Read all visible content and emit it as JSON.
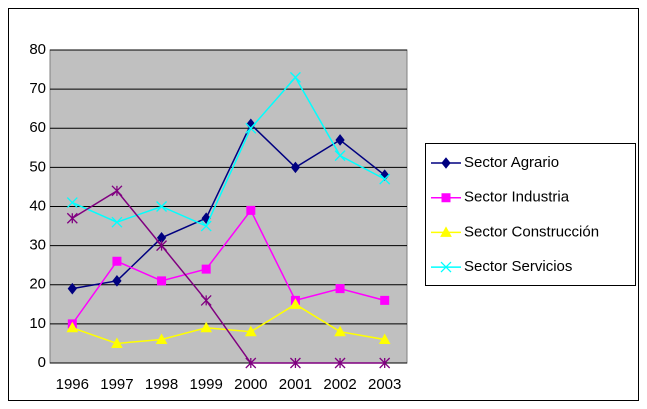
{
  "chart_data": {
    "type": "line",
    "categories": [
      "1996",
      "1997",
      "1998",
      "1999",
      "2000",
      "2001",
      "2002",
      "2003"
    ],
    "series": [
      {
        "name": "Sector Agrario",
        "color": "#000080",
        "marker": "diamond",
        "values": [
          19,
          21,
          32,
          37,
          61,
          50,
          57,
          48
        ]
      },
      {
        "name": "Sector Industria",
        "color": "#ff00ff",
        "marker": "square",
        "values": [
          10,
          26,
          21,
          24,
          39,
          16,
          19,
          16
        ]
      },
      {
        "name": "Sector Construcción",
        "color": "#ffff00",
        "marker": "triangle",
        "values": [
          9,
          5,
          6,
          9,
          8,
          15,
          8,
          6
        ]
      },
      {
        "name": "Sector Servicios",
        "color": "#00ffff",
        "marker": "x",
        "values": [
          41,
          36,
          40,
          35,
          60,
          73,
          53,
          47
        ]
      },
      {
        "color": "#800080",
        "marker": "asterisk",
        "values": [
          37,
          44,
          30,
          16,
          0,
          0,
          0,
          0
        ]
      }
    ],
    "ylim": [
      0,
      80
    ],
    "yticks": [
      0,
      10,
      20,
      30,
      40,
      50,
      60,
      70,
      80
    ],
    "grid": true,
    "legend": "right"
  }
}
